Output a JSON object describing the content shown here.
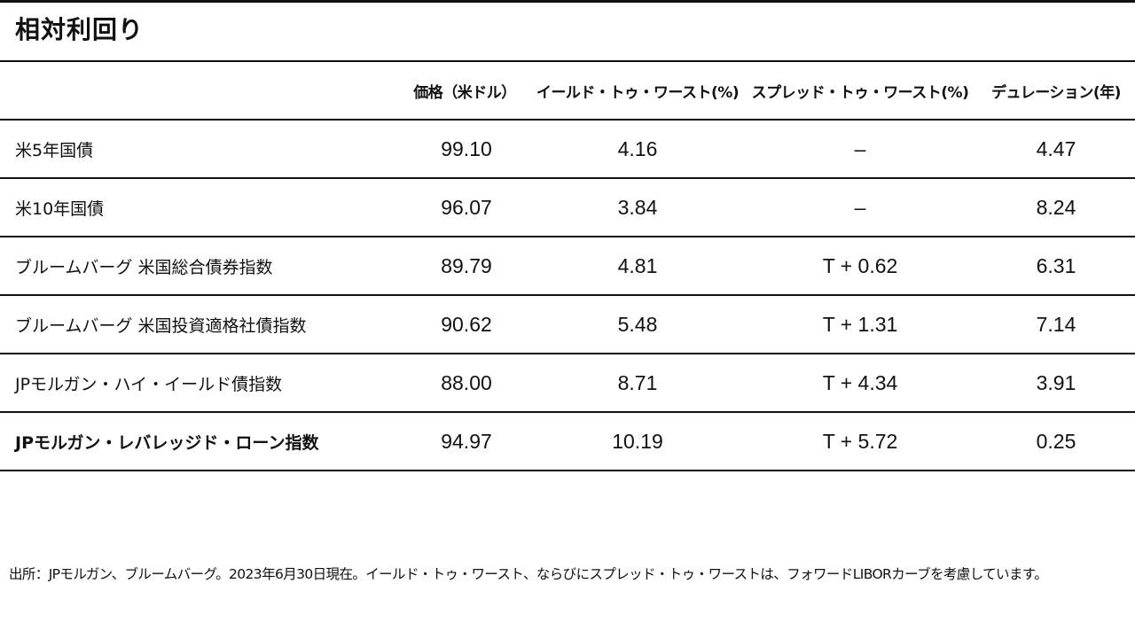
{
  "title": "相対利回り",
  "table": {
    "headers": {
      "name": "",
      "price": "価格（米ドル）",
      "ytw": "イールド・トゥ・ワースト(%)",
      "stw": "スプレッド・トゥ・ワースト(%)",
      "duration": "デュレーション(年)"
    },
    "rows": [
      {
        "name": "米5年国債",
        "price": "99.10",
        "ytw": "4.16",
        "stw": "–",
        "duration": "4.47"
      },
      {
        "name": "米10年国債",
        "price": "96.07",
        "ytw": "3.84",
        "stw": "–",
        "duration": "8.24"
      },
      {
        "name": "ブルームバーグ 米国総合債券指数",
        "price": "89.79",
        "ytw": "4.81",
        "stw": "T + 0.62",
        "duration": "6.31"
      },
      {
        "name": "ブルームバーグ 米国投資適格社債指数",
        "price": "90.62",
        "ytw": "5.48",
        "stw": "T + 1.31",
        "duration": "7.14"
      },
      {
        "name": "JPモルガン・ハイ・イールド債指数",
        "price": "88.00",
        "ytw": "8.71",
        "stw": "T + 4.34",
        "duration": "3.91"
      },
      {
        "name": "JPモルガン・レバレッジド・ローン指数",
        "price": "94.97",
        "ytw": "10.19",
        "stw": "T + 5.72",
        "duration": "0.25"
      }
    ]
  },
  "footnote": "出所：JPモルガン、ブルームバーグ。2023年6月30日現在。イールド・トゥ・ワースト、ならびにスプレッド・トゥ・ワーストは、フォワードLIBORカーブを考慮しています。"
}
